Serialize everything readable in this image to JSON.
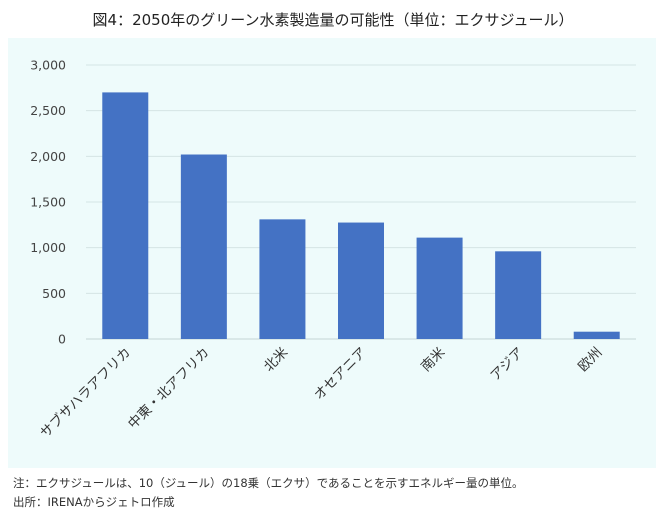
{
  "figure": {
    "title": "図4：2050年のグリーン水素製造量の可能性（単位：エクサジュール）",
    "note": "注：エクサジュールは、10（ジュール）の18乗（エクサ）であることを示すエネルギー量の単位。",
    "source": "出所：IRENAからジェトロ作成"
  },
  "chart_data": {
    "type": "bar",
    "title": "図4：2050年のグリーン水素製造量の可能性（単位：エクサジュール）",
    "xlabel": "",
    "ylabel": "",
    "categories": [
      "サブサハラアフリカ",
      "中東・北アフリカ",
      "北米",
      "オセアニア",
      "南米",
      "アジア",
      "欧州"
    ],
    "values": [
      2700,
      2020,
      1310,
      1275,
      1110,
      960,
      80
    ],
    "ylim": [
      0,
      3000
    ],
    "yticks": [
      0,
      500,
      1000,
      1500,
      2000,
      2500,
      3000
    ],
    "ytick_labels": [
      "0",
      "500",
      "1,000",
      "1,500",
      "2,000",
      "2,500",
      "3,000"
    ],
    "grid": true,
    "legend": "none",
    "bar_color": "#4472c4",
    "background_color": "#eefbfb"
  }
}
